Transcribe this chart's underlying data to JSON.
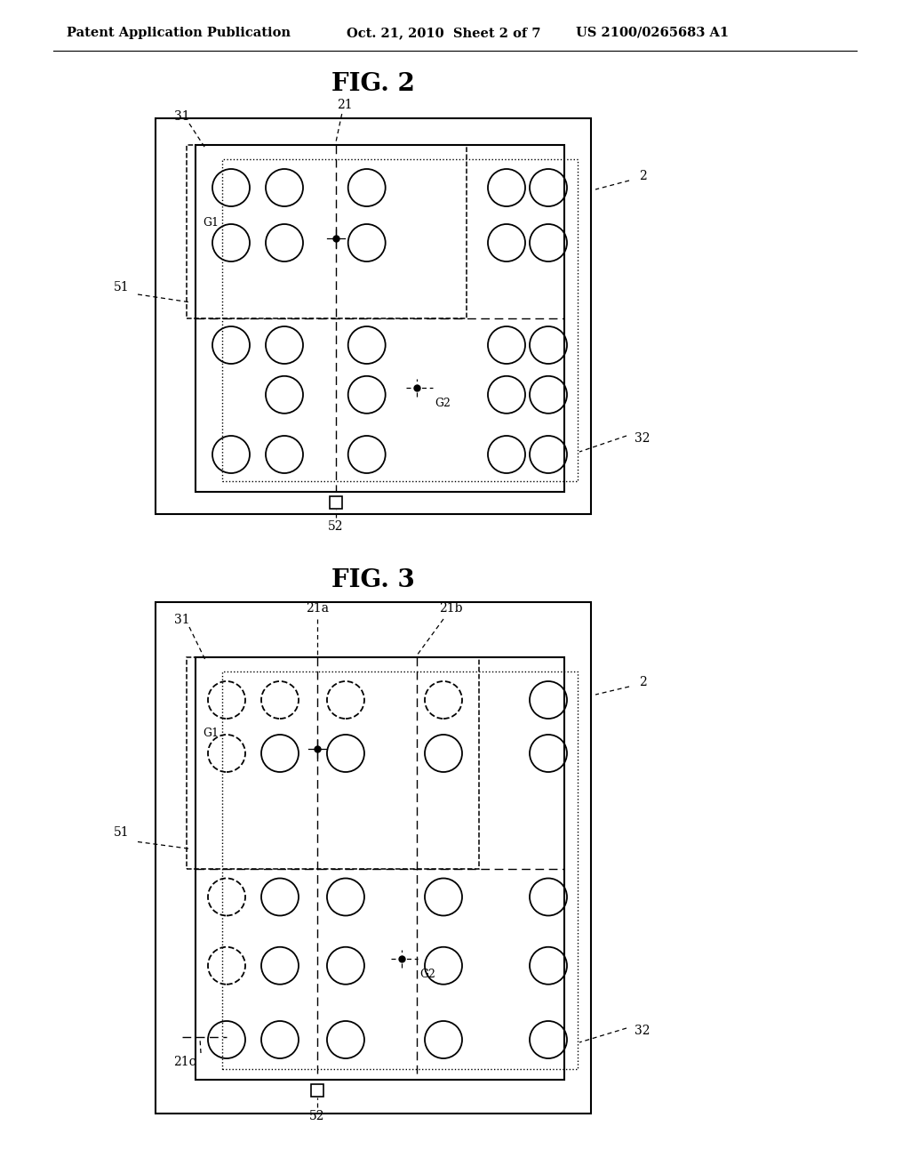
{
  "bg_color": "#ffffff",
  "header_text": "Patent Application Publication",
  "header_date": "Oct. 21, 2010  Sheet 2 of 7",
  "header_patent": "US 2100/0265683 A1",
  "fig2_title": "FIG. 2",
  "fig3_title": "FIG. 3"
}
